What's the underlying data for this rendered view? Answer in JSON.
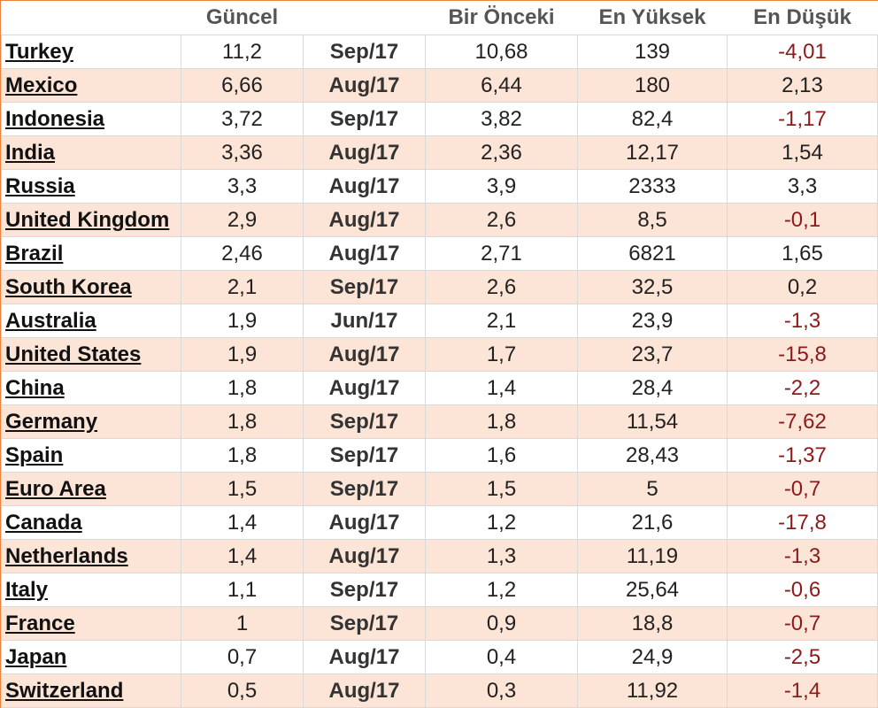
{
  "headers": [
    "",
    "Güncel",
    "",
    "Bir Önceki",
    "En Yüksek",
    "En Düşük"
  ],
  "colors": {
    "row_alt": "#fce4d6",
    "border_accent": "#e8843f",
    "negative": "#8b1a1a"
  },
  "rows": [
    {
      "country": "Turkey",
      "current": "11,2",
      "date": "Sep/17",
      "previous": "10,68",
      "high": "139",
      "low": "-4,01"
    },
    {
      "country": "Mexico",
      "current": "6,66",
      "date": "Aug/17",
      "previous": "6,44",
      "high": "180",
      "low": "2,13"
    },
    {
      "country": "Indonesia",
      "current": "3,72",
      "date": "Sep/17",
      "previous": "3,82",
      "high": "82,4",
      "low": "-1,17"
    },
    {
      "country": "India",
      "current": "3,36",
      "date": "Aug/17",
      "previous": "2,36",
      "high": "12,17",
      "low": "1,54"
    },
    {
      "country": "Russia",
      "current": "3,3",
      "date": "Aug/17",
      "previous": "3,9",
      "high": "2333",
      "low": "3,3"
    },
    {
      "country": "United Kingdom",
      "current": "2,9",
      "date": "Aug/17",
      "previous": "2,6",
      "high": "8,5",
      "low": "-0,1"
    },
    {
      "country": "Brazil",
      "current": "2,46",
      "date": "Aug/17",
      "previous": "2,71",
      "high": "6821",
      "low": "1,65"
    },
    {
      "country": "South Korea",
      "current": "2,1",
      "date": "Sep/17",
      "previous": "2,6",
      "high": "32,5",
      "low": "0,2"
    },
    {
      "country": "Australia",
      "current": "1,9",
      "date": "Jun/17",
      "previous": "2,1",
      "high": "23,9",
      "low": "-1,3"
    },
    {
      "country": "United States",
      "current": "1,9",
      "date": "Aug/17",
      "previous": "1,7",
      "high": "23,7",
      "low": "-15,8"
    },
    {
      "country": "China",
      "current": "1,8",
      "date": "Aug/17",
      "previous": "1,4",
      "high": "28,4",
      "low": "-2,2"
    },
    {
      "country": "Germany",
      "current": "1,8",
      "date": "Sep/17",
      "previous": "1,8",
      "high": "11,54",
      "low": "-7,62"
    },
    {
      "country": "Spain",
      "current": "1,8",
      "date": "Sep/17",
      "previous": "1,6",
      "high": "28,43",
      "low": "-1,37"
    },
    {
      "country": "Euro Area",
      "current": "1,5",
      "date": "Sep/17",
      "previous": "1,5",
      "high": "5",
      "low": "-0,7"
    },
    {
      "country": "Canada",
      "current": "1,4",
      "date": "Aug/17",
      "previous": "1,2",
      "high": "21,6",
      "low": "-17,8"
    },
    {
      "country": "Netherlands",
      "current": "1,4",
      "date": "Aug/17",
      "previous": "1,3",
      "high": "11,19",
      "low": "-1,3"
    },
    {
      "country": "Italy",
      "current": "1,1",
      "date": "Sep/17",
      "previous": "1,2",
      "high": "25,64",
      "low": "-0,6"
    },
    {
      "country": "France",
      "current": "1",
      "date": "Sep/17",
      "previous": "0,9",
      "high": "18,8",
      "low": "-0,7"
    },
    {
      "country": "Japan",
      "current": "0,7",
      "date": "Aug/17",
      "previous": "0,4",
      "high": "24,9",
      "low": "-2,5"
    },
    {
      "country": "Switzerland",
      "current": "0,5",
      "date": "Aug/17",
      "previous": "0,3",
      "high": "11,92",
      "low": "-1,4"
    }
  ]
}
